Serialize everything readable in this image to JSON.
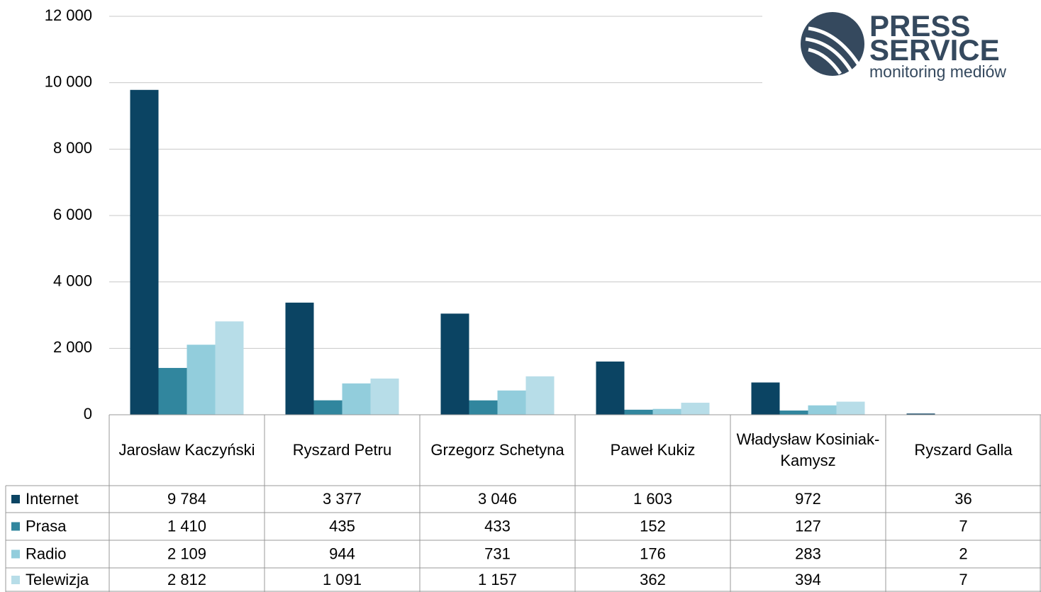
{
  "chart_data": {
    "type": "bar",
    "logo": {
      "line1": "PRESS",
      "line2": "SERVICE",
      "tagline": "monitoring mediów"
    },
    "categories": [
      "Jarosław Kaczyński",
      "Ryszard Petru",
      "Grzegorz Schetyna",
      "Paweł Kukiz",
      "Władysław Kosiniak-Kamysz",
      "Ryszard Galla"
    ],
    "series": [
      {
        "name": "Internet",
        "color": "#0b4463",
        "values": [
          9784,
          3377,
          3046,
          1603,
          972,
          36
        ],
        "value_labels": [
          "9 784",
          "3 377",
          "3 046",
          "1 603",
          "972",
          "36"
        ]
      },
      {
        "name": "Prasa",
        "color": "#31869e",
        "values": [
          1410,
          435,
          433,
          152,
          127,
          7
        ],
        "value_labels": [
          "1 410",
          "435",
          "433",
          "152",
          "127",
          "7"
        ]
      },
      {
        "name": "Radio",
        "color": "#92cddc",
        "values": [
          2109,
          944,
          731,
          176,
          283,
          2
        ],
        "value_labels": [
          "2 109",
          "944",
          "731",
          "176",
          "283",
          "2"
        ]
      },
      {
        "name": "Telewizja",
        "color": "#b7dde8",
        "values": [
          2812,
          1091,
          1157,
          362,
          394,
          7
        ],
        "value_labels": [
          "2 812",
          "1 091",
          "1 157",
          "362",
          "394",
          "7"
        ]
      }
    ],
    "ylim": [
      0,
      12000
    ],
    "yticks": [
      0,
      {
        "value": 2000,
        "label": "2 000"
      },
      {
        "value": 4000,
        "label": "4 000"
      },
      {
        "value": 6000,
        "label": "6 000"
      },
      {
        "value": 8000,
        "label": "8 000"
      },
      {
        "value": 10000,
        "label": "10 000"
      },
      {
        "value": 12000,
        "label": "12 000"
      }
    ],
    "grid": true
  }
}
